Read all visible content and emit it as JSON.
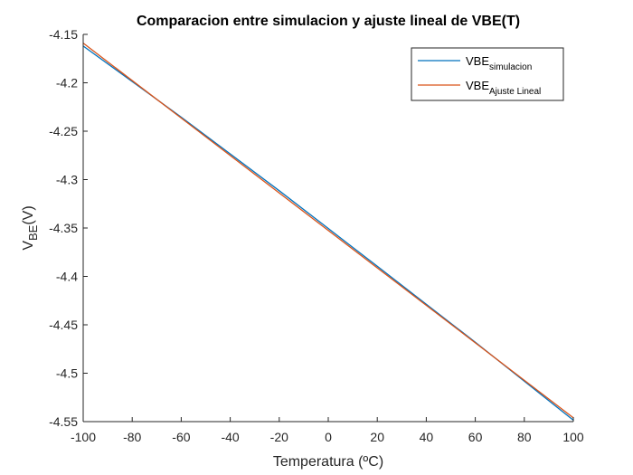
{
  "chart_data": {
    "type": "line",
    "title": "Comparacion entre simulacion y ajuste lineal de VBE(T)",
    "xlabel": "Temperatura (ºC)",
    "ylabel": {
      "main": "V",
      "sub": "BE",
      "suffix": "(V)"
    },
    "xlim": [
      -100,
      100
    ],
    "ylim": [
      -4.55,
      -4.15
    ],
    "xticks": [
      -100,
      -80,
      -60,
      -40,
      -20,
      0,
      20,
      40,
      60,
      80,
      100
    ],
    "yticks": [
      -4.15,
      -4.2,
      -4.25,
      -4.3,
      -4.35,
      -4.4,
      -4.45,
      -4.5,
      -4.55
    ],
    "xtick_labels": [
      "-100",
      "-80",
      "-60",
      "-40",
      "-20",
      "0",
      "20",
      "40",
      "60",
      "80",
      "100"
    ],
    "ytick_labels": [
      "-4.15",
      "-4.2",
      "-4.25",
      "-4.3",
      "-4.35",
      "-4.4",
      "-4.45",
      "-4.5",
      "-4.55"
    ],
    "grid": false,
    "legend_position": "top-right",
    "series": [
      {
        "name": "VBE_simulacion",
        "legend_main": "VBE",
        "legend_sub": "simulacion",
        "color": "#0072BD",
        "x": [
          -100,
          -60,
          -20,
          0,
          20,
          60,
          100
        ],
        "y": [
          -4.162,
          -4.2355,
          -4.3115,
          -4.3505,
          -4.3895,
          -4.468,
          -4.5485
        ]
      },
      {
        "name": "VBE_Ajuste Lineal",
        "legend_main": "VBE",
        "legend_sub": "Ajuste Lineal",
        "color": "#D95319",
        "x": [
          -100,
          100
        ],
        "y": [
          -4.159,
          -4.546
        ]
      }
    ]
  }
}
